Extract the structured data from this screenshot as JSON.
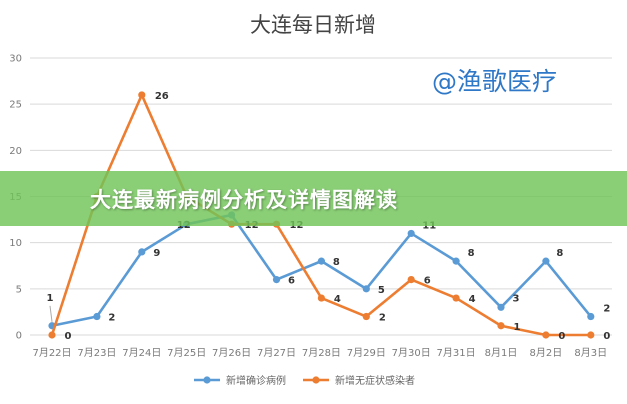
{
  "banner": {
    "text": "大连最新病例分析及详情图解读"
  },
  "watermark": {
    "text": "@渔歌医疗"
  },
  "colors": {
    "confirmed": "#5b9bd5",
    "asymptomatic": "#ed7d31",
    "grid": "#d9d9d9",
    "banner": "#70c458"
  },
  "chart_data": {
    "type": "line",
    "title": "大连每日新增",
    "xlabel": "",
    "ylabel": "",
    "ylim": [
      0,
      30
    ],
    "yticks": [
      0,
      5,
      10,
      15,
      20,
      25,
      30
    ],
    "grid": true,
    "legend_position": "bottom",
    "categories": [
      "7月22日",
      "7月23日",
      "7月24日",
      "7月25日",
      "7月26日",
      "7月27日",
      "7月28日",
      "7月29日",
      "7月30日",
      "7月31日",
      "8月1日",
      "8月2日",
      "8月3日"
    ],
    "series": [
      {
        "name": "新增确诊病例",
        "color": "#5b9bd5",
        "values": [
          1,
          2,
          9,
          12,
          13,
          6,
          8,
          5,
          11,
          8,
          3,
          8,
          2
        ]
      },
      {
        "name": "新增无症状感染者",
        "color": "#ed7d31",
        "values": [
          0,
          15,
          26,
          15,
          12,
          12,
          4,
          2,
          6,
          4,
          1,
          0,
          0
        ]
      }
    ],
    "data_labels": [
      {
        "series": 0,
        "index": 0,
        "text": "1"
      },
      {
        "series": 0,
        "index": 1,
        "text": "2"
      },
      {
        "series": 0,
        "index": 2,
        "text": "9"
      },
      {
        "series": 0,
        "index": 3,
        "text": "12"
      },
      {
        "series": 0,
        "index": 5,
        "text": "6"
      },
      {
        "series": 0,
        "index": 6,
        "text": "8"
      },
      {
        "series": 0,
        "index": 7,
        "text": "5"
      },
      {
        "series": 0,
        "index": 8,
        "text": "11"
      },
      {
        "series": 0,
        "index": 9,
        "text": "8"
      },
      {
        "series": 0,
        "index": 10,
        "text": "3"
      },
      {
        "series": 0,
        "index": 11,
        "text": "8"
      },
      {
        "series": 0,
        "index": 12,
        "text": "2"
      },
      {
        "series": 1,
        "index": 0,
        "text": "0"
      },
      {
        "series": 1,
        "index": 2,
        "text": "26"
      },
      {
        "series": 1,
        "index": 4,
        "text": "12"
      },
      {
        "series": 1,
        "index": 5,
        "text": "12"
      },
      {
        "series": 1,
        "index": 6,
        "text": "4"
      },
      {
        "series": 1,
        "index": 7,
        "text": "2"
      },
      {
        "series": 1,
        "index": 8,
        "text": "6"
      },
      {
        "series": 1,
        "index": 9,
        "text": "4"
      },
      {
        "series": 1,
        "index": 10,
        "text": "1"
      },
      {
        "series": 1,
        "index": 11,
        "text": "0"
      },
      {
        "series": 1,
        "index": 12,
        "text": "0"
      }
    ]
  }
}
